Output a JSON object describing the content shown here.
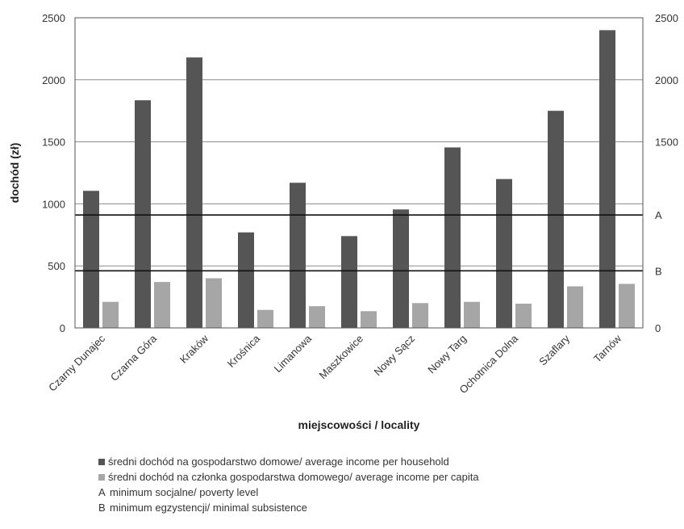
{
  "chart_data": {
    "type": "bar",
    "xlabel": "miejscowości / locality",
    "ylabel": "dochód (zł)",
    "ylim": [
      0,
      2500
    ],
    "yticks": [
      0,
      500,
      1000,
      1500,
      2000,
      2500
    ],
    "right_yticks": [
      "0",
      "B",
      "",
      "A",
      "1500",
      "2000",
      "2500"
    ],
    "grid": true,
    "categories": [
      "Czarny Dunajec",
      "Czarna Góra",
      "Kraków",
      "Krośnica",
      "Limanowa",
      "Maszkowice",
      "Nowy Sącz",
      "Nowy Targ",
      "Ochotnica Dolna",
      "Szaflary",
      "Tarnów"
    ],
    "series": [
      {
        "name": "średni dochód na gospodarstwo domowe/ average income per household",
        "color": "#555555",
        "values": [
          1105,
          1835,
          2180,
          770,
          1170,
          740,
          955,
          1455,
          1200,
          1750,
          2400
        ]
      },
      {
        "name": "średni dochód na członka gospodarstwa domowego/ average income per capita",
        "color": "#a6a6a6",
        "values": [
          210,
          370,
          400,
          145,
          175,
          135,
          200,
          210,
          195,
          335,
          355
        ]
      }
    ],
    "reference_lines": [
      {
        "key": "A",
        "value": 910,
        "label": "minimum socjalne/ poverty level"
      },
      {
        "key": "B",
        "value": 460,
        "label": "minimum egzystencji/ minimal subsistence"
      }
    ]
  }
}
